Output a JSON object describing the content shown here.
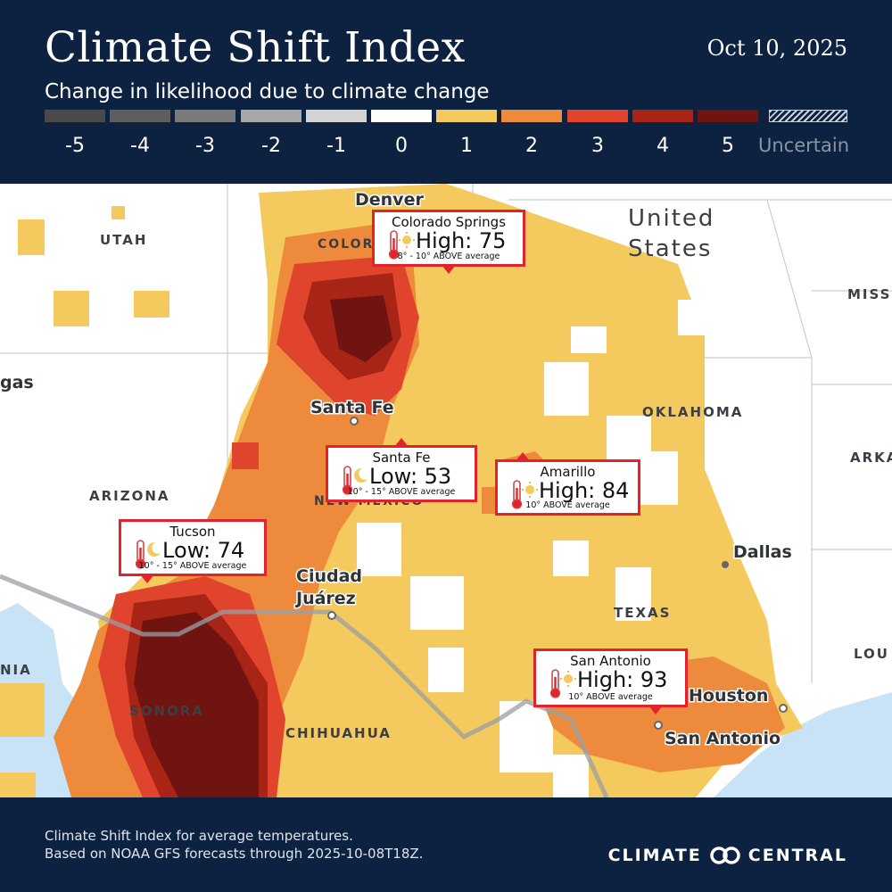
{
  "header": {
    "title": "Climate Shift Index",
    "subtitle": "Change in likelihood due to climate change",
    "date": "Oct 10, 2025"
  },
  "legend": [
    {
      "label": "-5",
      "color": "#4a4a4a"
    },
    {
      "label": "-4",
      "color": "#5e5e5e"
    },
    {
      "label": "-3",
      "color": "#7a7a7a"
    },
    {
      "label": "-2",
      "color": "#a7a7a7"
    },
    {
      "label": "-1",
      "color": "#d3d3d3"
    },
    {
      "label": "0",
      "color": "#ffffff"
    },
    {
      "label": "1",
      "color": "#f4c95d"
    },
    {
      "label": "2",
      "color": "#ee8a3c"
    },
    {
      "label": "3",
      "color": "#e0442c"
    },
    {
      "label": "4",
      "color": "#a82416"
    },
    {
      "label": "5",
      "color": "#6f1410"
    },
    {
      "label": "Uncertain",
      "color": "hatched"
    }
  ],
  "map": {
    "regions": [
      "UTAH",
      "COLORADO",
      "ARIZONA",
      "NEW MEXICO",
      "OKLAHOMA",
      "TEXAS",
      "SONORA",
      "CHIHUAHUA",
      "United",
      "States",
      "MISS",
      "ARKA",
      "LOU",
      "NIA"
    ],
    "cities": [
      "Denver",
      "Santa Fe",
      "Ciudad",
      "Juárez",
      "Dallas",
      "Houston",
      "San Antonio",
      "gas"
    ]
  },
  "callouts": [
    {
      "city": "Colorado Springs",
      "temp": "High: 75",
      "avg": "8° - 10° ABOVE average",
      "icon": "thermometer-sun-icon"
    },
    {
      "city": "Santa Fe",
      "temp": "Low: 53",
      "avg": "10° - 15° ABOVE average",
      "icon": "thermometer-moon-icon"
    },
    {
      "city": "Amarillo",
      "temp": "High: 84",
      "avg": "10° ABOVE average",
      "icon": "thermometer-sun-icon"
    },
    {
      "city": "Tucson",
      "temp": "Low: 74",
      "avg": "10° - 15° ABOVE average",
      "icon": "thermometer-moon-icon"
    },
    {
      "city": "San Antonio",
      "temp": "High: 93",
      "avg": "10° ABOVE average",
      "icon": "thermometer-sun-icon"
    }
  ],
  "footer": {
    "line1": "Climate Shift Index for average temperatures.",
    "line2": "Based on NOAA GFS forecasts through 2025-10-08T18Z.",
    "logo_left": "CLIMATE",
    "logo_right": "CENTRAL"
  }
}
